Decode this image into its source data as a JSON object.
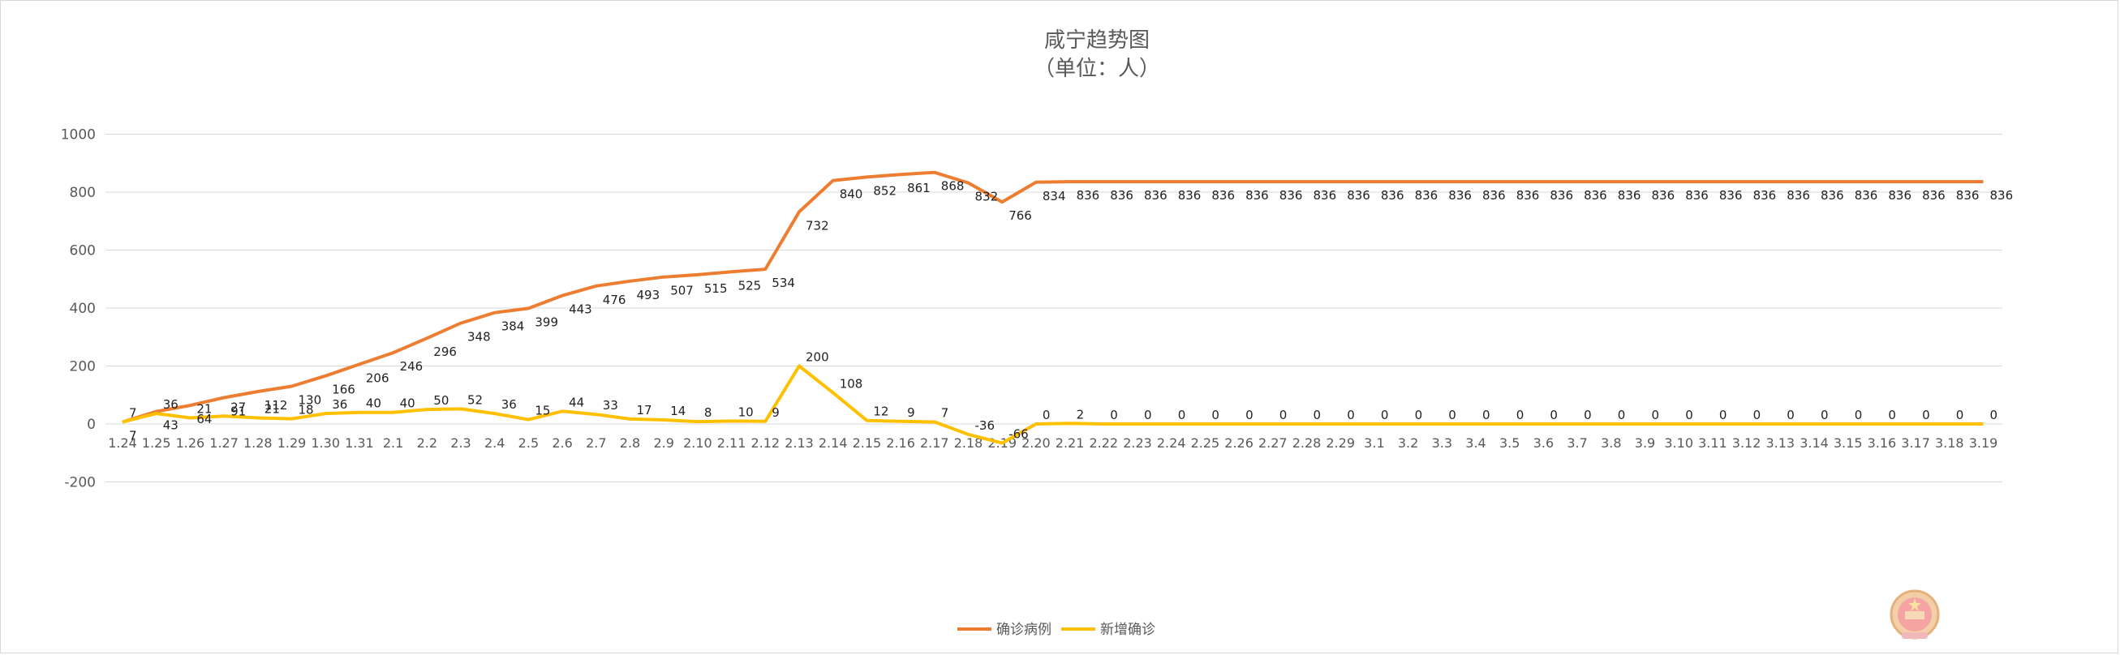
{
  "chart_data": {
    "type": "line",
    "title": "咸宁趋势图",
    "subtitle": "（单位：人）",
    "xlabel": "",
    "ylabel": "",
    "ylim": [
      -200,
      1000
    ],
    "yticks": [
      -200,
      0,
      200,
      400,
      600,
      800,
      1000
    ],
    "grid": true,
    "legend_position": "bottom",
    "categories": [
      "1.24",
      "1.25",
      "1.26",
      "1.27",
      "1.28",
      "1.29",
      "1.30",
      "1.31",
      "2.1",
      "2.2",
      "2.3",
      "2.4",
      "2.5",
      "2.6",
      "2.7",
      "2.8",
      "2.9",
      "2.10",
      "2.11",
      "2.12",
      "2.13",
      "2.14",
      "2.15",
      "2.16",
      "2.17",
      "2.18",
      "2.19",
      "2.20",
      "2.21",
      "2.22",
      "2.23",
      "2.24",
      "2.25",
      "2.26",
      "2.27",
      "2.28",
      "2.29",
      "3.1",
      "3.2",
      "3.3",
      "3.4",
      "3.5",
      "3.6",
      "3.7",
      "3.8",
      "3.9",
      "3.10",
      "3.11",
      "3.12",
      "3.13",
      "3.14",
      "3.15",
      "3.16",
      "3.17",
      "3.18",
      "3.19"
    ],
    "series": [
      {
        "name": "确诊病例",
        "color": "#ED7D31",
        "values": [
          7,
          43,
          64,
          91,
          112,
          130,
          166,
          206,
          246,
          296,
          348,
          384,
          399,
          443,
          476,
          493,
          507,
          515,
          525,
          534,
          732,
          840,
          852,
          861,
          868,
          832,
          766,
          834,
          836,
          836,
          836,
          836,
          836,
          836,
          836,
          836,
          836,
          836,
          836,
          836,
          836,
          836,
          836,
          836,
          836,
          836,
          836,
          836,
          836,
          836,
          836,
          836,
          836,
          836,
          836,
          836
        ]
      },
      {
        "name": "新增确诊",
        "color": "#FFC000",
        "values": [
          7,
          36,
          21,
          27,
          21,
          18,
          36,
          40,
          40,
          50,
          52,
          36,
          15,
          44,
          33,
          17,
          14,
          8,
          10,
          9,
          200,
          108,
          12,
          9,
          7,
          -36,
          -66,
          0,
          2,
          0,
          0,
          0,
          0,
          0,
          0,
          0,
          0,
          0,
          0,
          0,
          0,
          0,
          0,
          0,
          0,
          0,
          0,
          0,
          0,
          0,
          0,
          0,
          0,
          0,
          0,
          0
        ]
      }
    ]
  },
  "decoration": {
    "emblem_icon": "national-emblem-icon"
  }
}
